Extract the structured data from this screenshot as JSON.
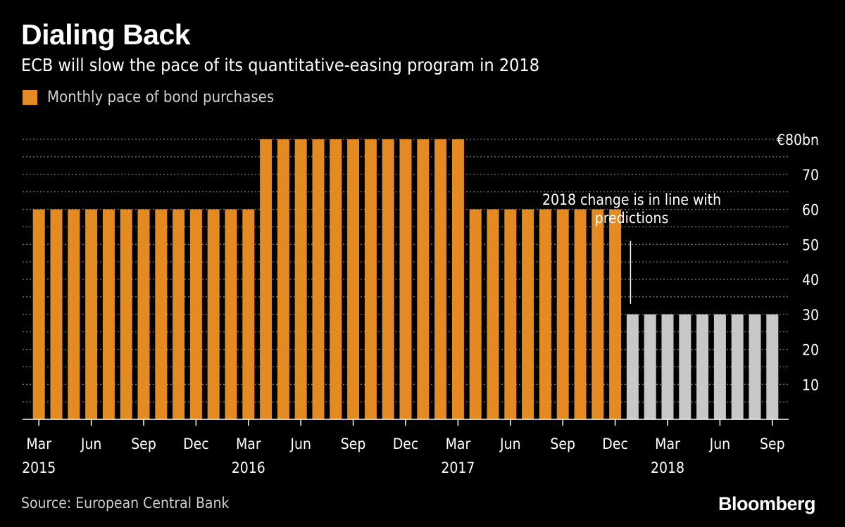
{
  "header": {
    "title": "Dialing Back",
    "subtitle": "ECB will slow the pace of its quantitative-easing program in 2018"
  },
  "footer": {
    "source": "Source: European Central Bank",
    "brand": "Bloomberg"
  },
  "colors": {
    "background": "#000000",
    "historical_bar": "#e38b22",
    "projected_bar": "#c8c8c8",
    "grid": "#7a7a7a",
    "text": "#ffffff"
  },
  "chart_data": {
    "type": "bar",
    "legend": [
      "Monthly pace of bond purchases"
    ],
    "unit": "€bn",
    "ylim": [
      0,
      80
    ],
    "yticks": [
      10,
      20,
      30,
      40,
      50,
      60,
      70,
      80
    ],
    "ytick_labels": [
      "10",
      "20",
      "30",
      "40",
      "50",
      "60",
      "70",
      "€80bn"
    ],
    "grid": true,
    "months": [
      "2015-03",
      "2015-04",
      "2015-05",
      "2015-06",
      "2015-07",
      "2015-08",
      "2015-09",
      "2015-10",
      "2015-11",
      "2015-12",
      "2016-01",
      "2016-02",
      "2016-03",
      "2016-04",
      "2016-05",
      "2016-06",
      "2016-07",
      "2016-08",
      "2016-09",
      "2016-10",
      "2016-11",
      "2016-12",
      "2017-01",
      "2017-02",
      "2017-03",
      "2017-04",
      "2017-05",
      "2017-06",
      "2017-07",
      "2017-08",
      "2017-09",
      "2017-10",
      "2017-11",
      "2017-12",
      "2018-01",
      "2018-02",
      "2018-03",
      "2018-04",
      "2018-05",
      "2018-06",
      "2018-07",
      "2018-08",
      "2018-09"
    ],
    "values": [
      60,
      60,
      60,
      60,
      60,
      60,
      60,
      60,
      60,
      60,
      60,
      60,
      60,
      80,
      80,
      80,
      80,
      80,
      80,
      80,
      80,
      80,
      80,
      80,
      80,
      60,
      60,
      60,
      60,
      60,
      60,
      60,
      60,
      60,
      30,
      30,
      30,
      30,
      30,
      30,
      30,
      30,
      30
    ],
    "projected_from_index": 34,
    "x_ticks": [
      {
        "index": 0,
        "month": "Mar",
        "year": "2015"
      },
      {
        "index": 3,
        "month": "Jun",
        "year": ""
      },
      {
        "index": 6,
        "month": "Sep",
        "year": ""
      },
      {
        "index": 9,
        "month": "Dec",
        "year": ""
      },
      {
        "index": 12,
        "month": "Mar",
        "year": "2016"
      },
      {
        "index": 15,
        "month": "Jun",
        "year": ""
      },
      {
        "index": 18,
        "month": "Sep",
        "year": ""
      },
      {
        "index": 21,
        "month": "Dec",
        "year": ""
      },
      {
        "index": 24,
        "month": "Mar",
        "year": "2017"
      },
      {
        "index": 27,
        "month": "Jun",
        "year": ""
      },
      {
        "index": 30,
        "month": "Sep",
        "year": ""
      },
      {
        "index": 33,
        "month": "Dec",
        "year": ""
      },
      {
        "index": 36,
        "month": "Mar",
        "year": "2018"
      },
      {
        "index": 39,
        "month": "Jun",
        "year": ""
      },
      {
        "index": 42,
        "month": "Sep",
        "year": ""
      }
    ],
    "annotation": {
      "lines": [
        "2018 change is in line with",
        "predictions"
      ],
      "pointer_value_top": 51,
      "pointer_value_bottom": 33
    }
  }
}
